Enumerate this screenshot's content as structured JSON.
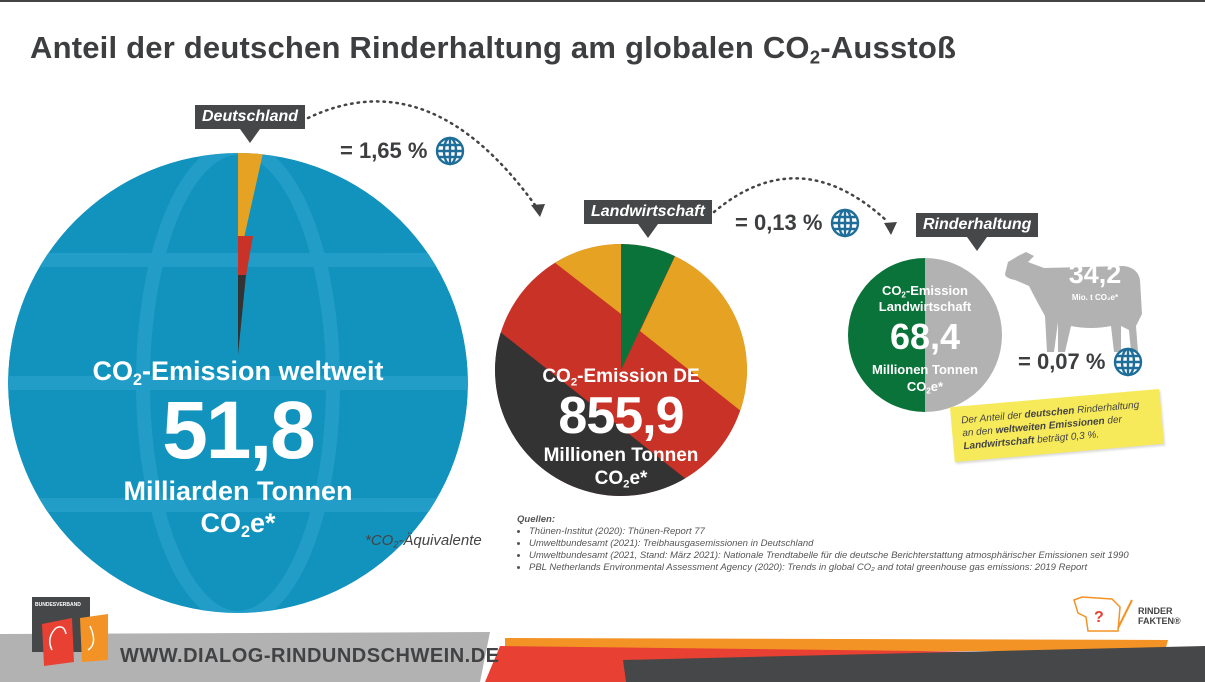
{
  "title": {
    "pre": "Anteil der deutschen Rinderhaltung am globalen CO",
    "sub": "2",
    "post": "-Ausstoß"
  },
  "world": {
    "tag": "Deutschland",
    "line1_pre": "CO",
    "line1_sub": "2",
    "line1_post": "-Emission weltweit",
    "value": "51,8",
    "unit": "Milliarden Tonnen",
    "co2e_pre": "CO",
    "co2e_sub": "2",
    "co2e_post": "e*",
    "share": "= 1,65 %",
    "footnote_pre": "*CO",
    "footnote_sub": "2",
    "footnote_post": "-Äquivalente"
  },
  "germany": {
    "tag": "Landwirtschaft",
    "line1_pre": "CO",
    "line1_sub": "2",
    "line1_post": "-Emission DE",
    "value": "855,9",
    "unit": "Millionen Tonnen",
    "co2e_pre": "CO",
    "co2e_sub": "2",
    "co2e_post": "e*",
    "share": "= 0,13 %"
  },
  "agriculture": {
    "tag": "Rinderhaltung",
    "line1_pre": "CO",
    "line1_sub": "2",
    "line1_post": "-Emission",
    "line2": "Landwirtschaft",
    "value": "68,4",
    "unit": "Millionen Tonnen",
    "co2e_pre": "CO",
    "co2e_sub": "2",
    "co2e_post": "e*",
    "cattle_value": "34,2",
    "cattle_unit": "Mio. t CO₂e*",
    "share": "= 0,07 %"
  },
  "note": {
    "a": "Der Anteil der ",
    "b": "deutschen",
    "c": " Rinderhaltung an den ",
    "d": "weltweiten Emissionen",
    "e": " der ",
    "f": "Landwirtschaft",
    "g": " beträgt 0,3 %."
  },
  "sources": {
    "heading": "Quellen:",
    "items": [
      "Thünen-Institut (2020): Thünen-Report 77",
      "Umweltbundesamt (2021): Treibhausgasemissionen in Deutschland",
      "Umweltbundesamt (2021, Stand: März 2021): Nationale Trendtabelle für die deutsche Berichterstattung atmosphärischer Emissionen seit 1990",
      "PBL Netherlands Environmental Assessment Agency (2020): Trends in global CO₂ and total greenhouse gas emissions: 2019 Report"
    ]
  },
  "footer": {
    "url": "WWW.DIALOG-RINDUNDSCHWEIN.DE",
    "logo_left": "BUNDESVERBAND RIND UND SCHWEIN E.V.",
    "logo_right_1": "RINDER",
    "logo_right_2": "FAKTEN®"
  },
  "colors": {
    "blue": "#1193be",
    "green": "#0a7339",
    "red": "#c93226",
    "orange": "#e6a323",
    "dark": "#333333",
    "grey": "#b3b2b2"
  }
}
